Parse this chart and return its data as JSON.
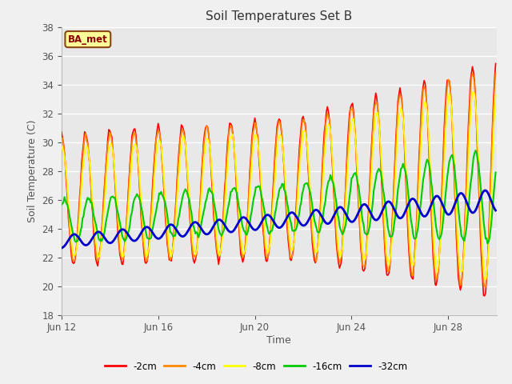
{
  "title": "Soil Temperatures Set B",
  "xlabel": "Time",
  "ylabel": "Soil Temperature (C)",
  "ylim": [
    18,
    38
  ],
  "yticks": [
    18,
    20,
    22,
    24,
    26,
    28,
    30,
    32,
    34,
    36,
    38
  ],
  "plot_bg_color": "#e8e8e8",
  "fig_bg_color": "#f0f0f0",
  "annotation_text": "BA_met",
  "annotation_bg": "#ffff99",
  "annotation_border": "#8B4513",
  "annotation_text_color": "#8B0000",
  "series_order": [
    "-2cm",
    "-4cm",
    "-8cm",
    "-16cm",
    "-32cm"
  ],
  "series_colors": [
    "#ff0000",
    "#ff8800",
    "#ffff00",
    "#00cc00",
    "#0000cc"
  ],
  "series_lw": [
    1.2,
    1.2,
    1.2,
    1.5,
    2.0
  ],
  "legend_labels": [
    "-2cm",
    "-4cm",
    "-8cm",
    "-16cm",
    "-32cm"
  ],
  "x_tick_days": [
    12,
    16,
    20,
    24,
    28
  ],
  "n_points": 432
}
